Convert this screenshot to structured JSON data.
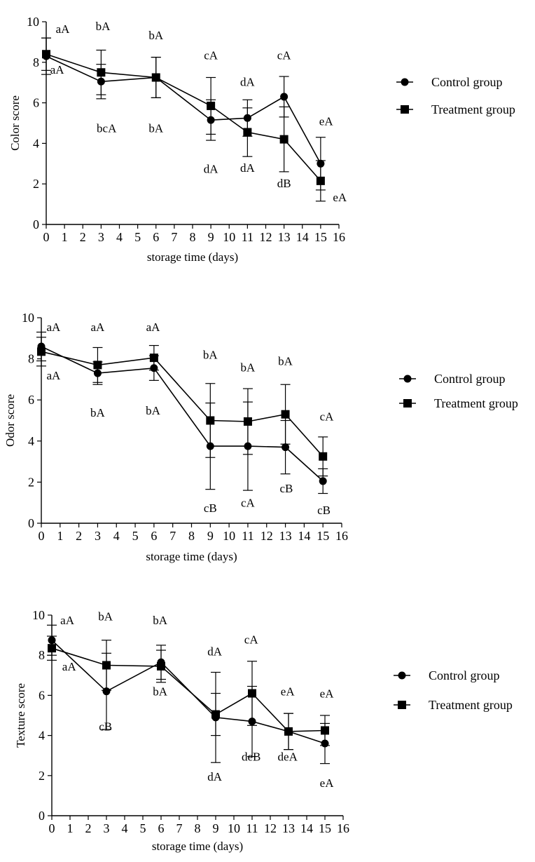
{
  "chart_data": [
    {
      "type": "line",
      "title": "",
      "xlabel": "storage time (days)",
      "ylabel": "Color score",
      "xlim": [
        0,
        16
      ],
      "ylim": [
        0,
        10
      ],
      "xticks": [
        0,
        1,
        2,
        3,
        4,
        5,
        6,
        7,
        8,
        9,
        10,
        11,
        12,
        13,
        14,
        15,
        16
      ],
      "yticks": [
        0,
        2,
        4,
        6,
        8,
        10
      ],
      "x": [
        0,
        3,
        6,
        9,
        11,
        13,
        15
      ],
      "series": [
        {
          "name": "Control group",
          "marker": "circle",
          "values": [
            8.3,
            7.05,
            7.25,
            5.15,
            5.25,
            6.3,
            3.0
          ],
          "errors": [
            0.9,
            0.85,
            1.0,
            1.0,
            0.9,
            1.0,
            1.3
          ]
        },
        {
          "name": "Treatment group",
          "marker": "square",
          "values": [
            8.4,
            7.5,
            7.25,
            5.85,
            4.55,
            4.2,
            2.15
          ],
          "errors": [
            0.8,
            1.1,
            1.0,
            1.4,
            1.2,
            1.6,
            1.0
          ]
        }
      ],
      "annotations": [
        {
          "text": "aA",
          "x": 0.9,
          "y": 9.65
        },
        {
          "text": "aA",
          "x": 0.6,
          "y": 7.65
        },
        {
          "text": "bA",
          "x": 3.1,
          "y": 9.8
        },
        {
          "text": "bcA",
          "x": 3.3,
          "y": 4.75
        },
        {
          "text": "bA",
          "x": 6.0,
          "y": 9.35
        },
        {
          "text": "bA",
          "x": 6.0,
          "y": 4.75
        },
        {
          "text": "cA",
          "x": 9.0,
          "y": 8.35
        },
        {
          "text": "dA",
          "x": 9.0,
          "y": 2.75
        },
        {
          "text": "dA",
          "x": 11.0,
          "y": 7.05
        },
        {
          "text": "dA",
          "x": 11.0,
          "y": 2.8
        },
        {
          "text": "cA",
          "x": 13.0,
          "y": 8.35
        },
        {
          "text": "dB",
          "x": 13.0,
          "y": 2.05
        },
        {
          "text": "eA",
          "x": 15.3,
          "y": 5.1
        },
        {
          "text": "eA",
          "x": 16.05,
          "y": 1.35
        }
      ]
    },
    {
      "type": "line",
      "title": "",
      "xlabel": "storage time (days)",
      "ylabel": "Odor score",
      "xlim": [
        0,
        16
      ],
      "ylim": [
        0,
        10
      ],
      "xticks": [
        0,
        1,
        2,
        3,
        4,
        5,
        6,
        7,
        8,
        9,
        10,
        11,
        12,
        13,
        14,
        15,
        16
      ],
      "yticks": [
        0,
        2,
        4,
        6,
        8,
        10
      ],
      "x": [
        0,
        3,
        6,
        9,
        11,
        13,
        15
      ],
      "series": [
        {
          "name": "Control group",
          "marker": "circle",
          "values": [
            8.6,
            7.3,
            7.55,
            3.75,
            3.75,
            3.7,
            2.05
          ],
          "errors": [
            0.7,
            0.55,
            0.6,
            2.1,
            2.15,
            1.3,
            0.6
          ]
        },
        {
          "name": "Treatment group",
          "marker": "square",
          "values": [
            8.35,
            7.7,
            8.05,
            5.0,
            4.95,
            5.3,
            3.25
          ],
          "errors": [
            0.7,
            0.85,
            0.6,
            1.8,
            1.6,
            1.45,
            0.95
          ]
        }
      ],
      "annotations": [
        {
          "text": "aA",
          "x": 0.65,
          "y": 9.55
        },
        {
          "text": "aA",
          "x": 0.65,
          "y": 7.2
        },
        {
          "text": "aA",
          "x": 3.0,
          "y": 9.55
        },
        {
          "text": "bA",
          "x": 3.0,
          "y": 5.4
        },
        {
          "text": "aA",
          "x": 5.95,
          "y": 9.55
        },
        {
          "text": "bA",
          "x": 5.95,
          "y": 5.5
        },
        {
          "text": "bA",
          "x": 9.0,
          "y": 8.2
        },
        {
          "text": "cB",
          "x": 9.0,
          "y": 0.75
        },
        {
          "text": "bA",
          "x": 11.0,
          "y": 7.6
        },
        {
          "text": "cA",
          "x": 11.0,
          "y": 1.0
        },
        {
          "text": "bA",
          "x": 13.0,
          "y": 7.9
        },
        {
          "text": "cB",
          "x": 13.05,
          "y": 1.7
        },
        {
          "text": "cA",
          "x": 15.2,
          "y": 5.2
        },
        {
          "text": "cB",
          "x": 15.05,
          "y": 0.65
        }
      ]
    },
    {
      "type": "line",
      "title": "",
      "xlabel": "storage time (days)",
      "ylabel": "Texture score",
      "xlim": [
        0,
        16
      ],
      "ylim": [
        0,
        10
      ],
      "xticks": [
        0,
        1,
        2,
        3,
        4,
        5,
        6,
        7,
        8,
        9,
        10,
        11,
        12,
        13,
        14,
        15,
        16
      ],
      "yticks": [
        0,
        2,
        4,
        6,
        8,
        10
      ],
      "x": [
        0,
        3,
        6,
        9,
        11,
        13,
        15
      ],
      "series": [
        {
          "name": "Control group",
          "marker": "circle",
          "values": [
            8.75,
            6.2,
            7.65,
            4.9,
            4.7,
            4.2,
            3.6
          ],
          "errors": [
            0.75,
            1.9,
            0.85,
            2.25,
            1.75,
            0.9,
            1.0
          ]
        },
        {
          "name": "Treatment group",
          "marker": "square",
          "values": [
            8.35,
            7.5,
            7.45,
            5.05,
            6.1,
            4.2,
            4.25
          ],
          "errors": [
            0.6,
            1.25,
            0.8,
            1.05,
            1.6,
            0.9,
            0.75
          ]
        }
      ],
      "annotations": [
        {
          "text": "aA",
          "x": 0.85,
          "y": 9.75
        },
        {
          "text": "aA",
          "x": 0.95,
          "y": 7.45
        },
        {
          "text": "bA",
          "x": 2.95,
          "y": 9.95
        },
        {
          "text": "cB",
          "x": 2.95,
          "y": 4.45
        },
        {
          "text": "bA",
          "x": 5.95,
          "y": 9.75
        },
        {
          "text": "bA",
          "x": 5.95,
          "y": 6.2
        },
        {
          "text": "dA",
          "x": 8.95,
          "y": 8.2
        },
        {
          "text": "dA",
          "x": 8.95,
          "y": 1.95
        },
        {
          "text": "cA",
          "x": 10.95,
          "y": 8.8
        },
        {
          "text": "deB",
          "x": 10.95,
          "y": 2.95
        },
        {
          "text": "eA",
          "x": 12.95,
          "y": 6.2
        },
        {
          "text": "deA",
          "x": 12.95,
          "y": 2.95
        },
        {
          "text": "eA",
          "x": 15.1,
          "y": 6.1
        },
        {
          "text": "eA",
          "x": 15.1,
          "y": 1.65
        }
      ]
    }
  ]
}
